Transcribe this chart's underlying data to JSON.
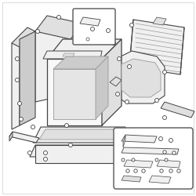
{
  "bg_color": "#ffffff",
  "line_color": "#444444",
  "mid_gray": "#999999",
  "fill_light": "#f0f0f0",
  "fill_gray": "#e0e0e0",
  "fill_dark": "#cccccc",
  "fig_width": 2.5,
  "fig_height": 2.5,
  "dpi": 100
}
